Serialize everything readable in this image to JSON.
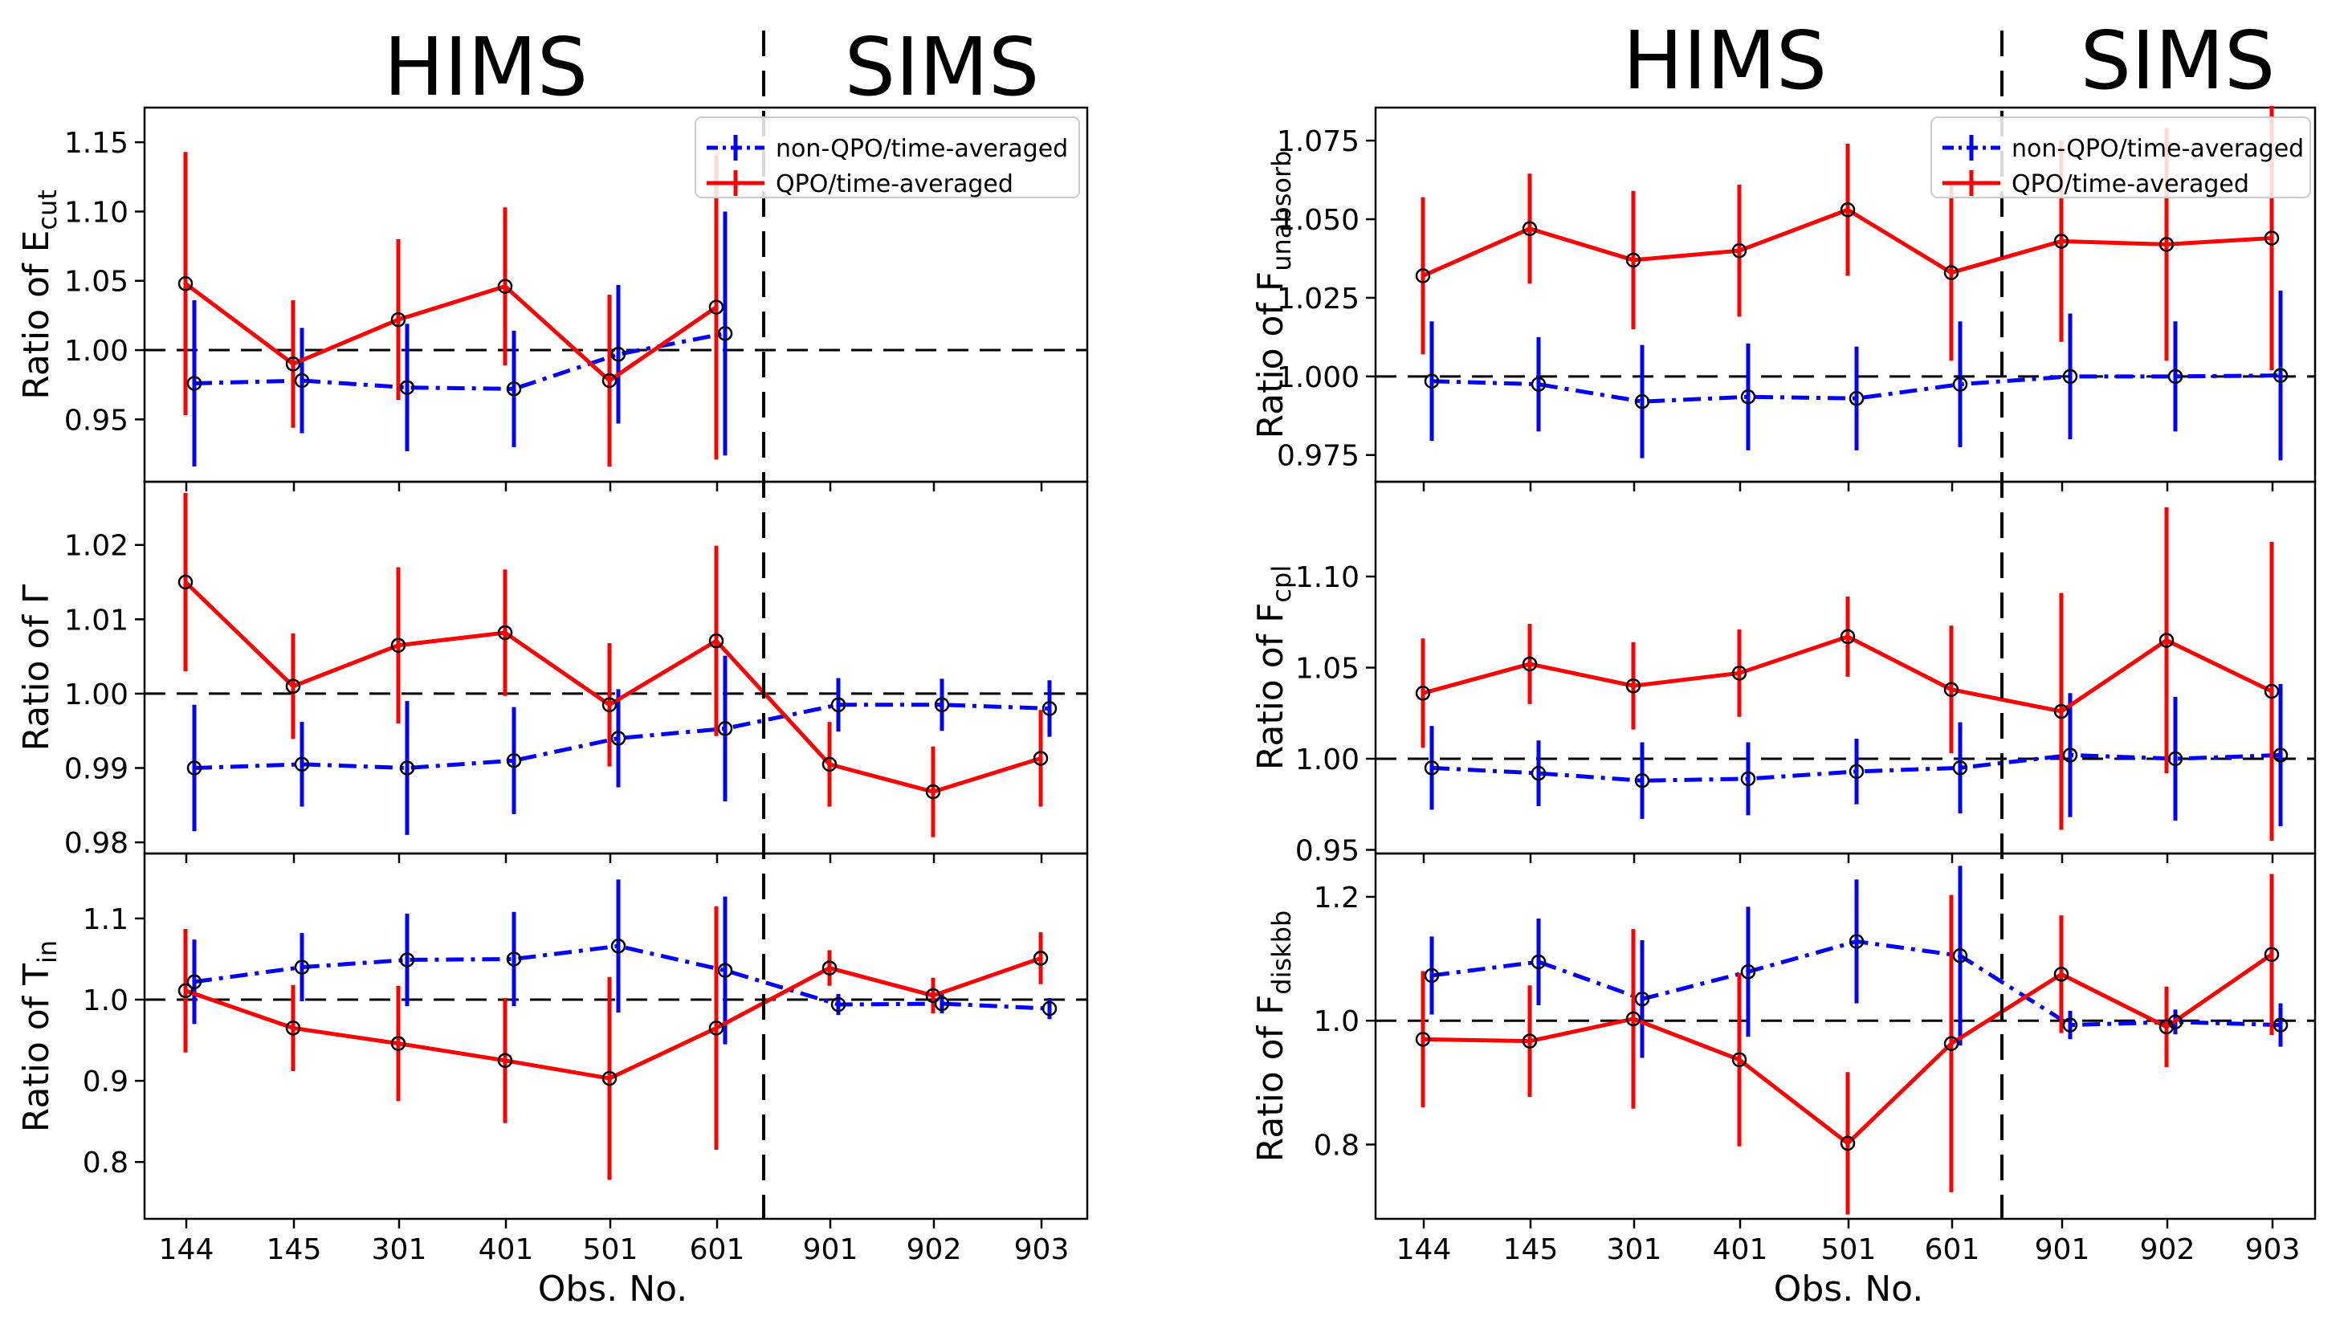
{
  "figure": {
    "xlabel": "Obs. No.",
    "categories": [
      "144",
      "145",
      "301",
      "401",
      "501",
      "601",
      "901",
      "902",
      "903"
    ],
    "state_labels": [
      "HIMS",
      "SIMS"
    ],
    "reference_line": 1.0,
    "state_boundary_between": [
      "601",
      "901"
    ],
    "legend": [
      "non-QPO/time-averaged",
      "QPO/time-averaged"
    ],
    "colors": {
      "nonqpo": "#0000ff",
      "qpo": "#ff0000",
      "axes": "#000000",
      "marker_edge": "#000000"
    }
  },
  "chart_data": [
    {
      "type": "line",
      "label_main": "Ratio of E",
      "label_sub": "cut",
      "ylim": [
        0.905,
        1.175
      ],
      "ticks": [
        0.95,
        1.0,
        1.05,
        1.1,
        1.15
      ],
      "tick_labels": [
        "0.95",
        "1.00",
        "1.05",
        "1.10",
        "1.15"
      ],
      "legend": "top-right",
      "series": [
        {
          "name": "non-QPO/time-averaged",
          "values": [
            0.976,
            0.978,
            0.973,
            0.972,
            0.997,
            1.012,
            null,
            null,
            null
          ],
          "errors": [
            0.06,
            0.038,
            0.046,
            0.042,
            0.05,
            0.088,
            null,
            null,
            null
          ]
        },
        {
          "name": "QPO/time-averaged",
          "values": [
            1.048,
            0.99,
            1.022,
            1.046,
            0.978,
            1.031,
            null,
            null,
            null
          ],
          "errors": [
            0.095,
            0.046,
            0.058,
            0.057,
            0.062,
            0.11,
            null,
            null,
            null
          ]
        }
      ]
    },
    {
      "type": "line",
      "label_main": "Ratio of Γ",
      "label_sub": "",
      "ylim": [
        0.9785,
        1.0285
      ],
      "ticks": [
        0.98,
        0.99,
        1.0,
        1.01,
        1.02
      ],
      "tick_labels": [
        "0.98",
        "0.99",
        "1.00",
        "1.01",
        "1.02"
      ],
      "series": [
        {
          "name": "non-QPO/time-averaged",
          "values": [
            0.99,
            0.9905,
            0.99,
            0.991,
            0.994,
            0.9953,
            0.9985,
            0.9985,
            0.998
          ],
          "errors": [
            0.0085,
            0.0057,
            0.009,
            0.0072,
            0.0066,
            0.0098,
            0.0036,
            0.0035,
            0.0038
          ]
        },
        {
          "name": "QPO/time-averaged",
          "values": [
            1.015,
            1.001,
            1.0065,
            1.0082,
            0.9985,
            1.0071,
            0.9905,
            0.9868,
            0.9913
          ],
          "errors": [
            0.012,
            0.0071,
            0.0105,
            0.0085,
            0.0083,
            0.0128,
            0.0057,
            0.0061,
            0.0065
          ]
        }
      ]
    },
    {
      "type": "line",
      "label_main": "Ratio of T",
      "label_sub": "in",
      "ylim": [
        0.73,
        1.18
      ],
      "ticks": [
        0.8,
        0.9,
        1.0,
        1.1
      ],
      "tick_labels": [
        "0.8",
        "0.9",
        "1.0",
        "1.1"
      ],
      "series": [
        {
          "name": "non-QPO/time-averaged",
          "values": [
            1.022,
            1.04,
            1.049,
            1.05,
            1.066,
            1.036,
            0.994,
            0.995,
            0.989
          ],
          "errors": [
            0.052,
            0.042,
            0.057,
            0.058,
            0.082,
            0.091,
            0.013,
            0.012,
            0.013
          ]
        },
        {
          "name": "QPO/time-averaged",
          "values": [
            1.011,
            0.965,
            0.946,
            0.925,
            0.903,
            0.965,
            1.039,
            1.005,
            1.051
          ],
          "errors": [
            0.076,
            0.053,
            0.071,
            0.077,
            0.125,
            0.15,
            0.022,
            0.022,
            0.032
          ]
        }
      ]
    },
    {
      "type": "line",
      "label_main": "Ratio of F",
      "label_sub": "unabsorb",
      "ylim": [
        0.9665,
        1.0855
      ],
      "ticks": [
        0.975,
        1.0,
        1.025,
        1.05,
        1.075
      ],
      "tick_labels": [
        "0.975",
        "1.000",
        "1.025",
        "1.050",
        "1.075"
      ],
      "legend": "top-right",
      "series": [
        {
          "name": "non-QPO/time-averaged",
          "values": [
            0.9985,
            0.9975,
            0.992,
            0.9935,
            0.993,
            0.9975,
            1.0,
            1.0,
            1.0003
          ],
          "errors": [
            0.019,
            0.015,
            0.018,
            0.017,
            0.0165,
            0.02,
            0.02,
            0.0175,
            0.027
          ]
        },
        {
          "name": "QPO/time-averaged",
          "values": [
            1.032,
            1.047,
            1.037,
            1.04,
            1.053,
            1.033,
            1.043,
            1.042,
            1.044
          ],
          "errors": [
            0.025,
            0.0175,
            0.022,
            0.021,
            0.021,
            0.028,
            0.032,
            0.037,
            0.042
          ]
        }
      ]
    },
    {
      "type": "line",
      "label_main": "Ratio of F",
      "label_sub": "cpl",
      "ylim": [
        0.948,
        1.152
      ],
      "ticks": [
        0.95,
        1.0,
        1.05,
        1.1
      ],
      "tick_labels": [
        "0.95",
        "1.00",
        "1.05",
        "1.10"
      ],
      "series": [
        {
          "name": "non-QPO/time-averaged",
          "values": [
            0.995,
            0.992,
            0.988,
            0.989,
            0.993,
            0.995,
            1.002,
            1.0,
            1.002
          ],
          "errors": [
            0.023,
            0.018,
            0.021,
            0.02,
            0.018,
            0.025,
            0.034,
            0.034,
            0.039
          ]
        },
        {
          "name": "QPO/time-averaged",
          "values": [
            1.036,
            1.052,
            1.04,
            1.047,
            1.067,
            1.038,
            1.026,
            1.065,
            1.037
          ],
          "errors": [
            0.03,
            0.022,
            0.024,
            0.024,
            0.022,
            0.035,
            0.065,
            0.073,
            0.082
          ]
        }
      ]
    },
    {
      "type": "line",
      "label_main": "Ratio of F",
      "label_sub": "diskbb",
      "ylim": [
        0.68,
        1.27
      ],
      "ticks": [
        0.8,
        1.0,
        1.2
      ],
      "tick_labels": [
        "0.8",
        "1.0",
        "1.2"
      ],
      "series": [
        {
          "name": "non-QPO/time-averaged",
          "values": [
            1.073,
            1.095,
            1.035,
            1.079,
            1.128,
            1.105,
            0.993,
            0.998,
            0.993
          ],
          "errors": [
            0.063,
            0.07,
            0.095,
            0.105,
            0.1,
            0.145,
            0.023,
            0.02,
            0.035
          ]
        },
        {
          "name": "QPO/time-averaged",
          "values": [
            0.97,
            0.967,
            1.003,
            0.937,
            0.802,
            0.963,
            1.075,
            0.99,
            1.107
          ],
          "errors": [
            0.11,
            0.09,
            0.145,
            0.14,
            0.115,
            0.24,
            0.095,
            0.065,
            0.13
          ]
        }
      ]
    }
  ]
}
